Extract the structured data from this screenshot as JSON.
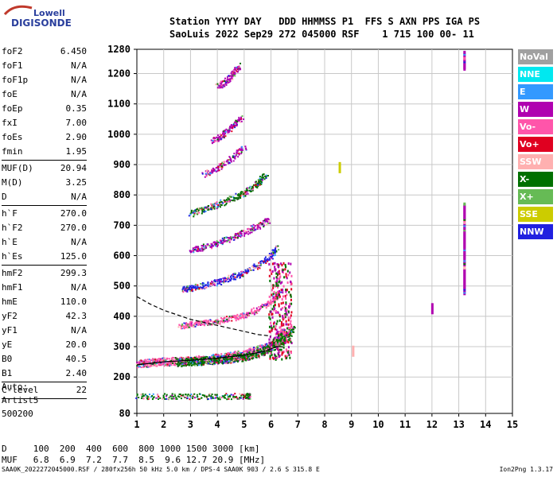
{
  "logo": {
    "line1": "Lowell",
    "line2": "DIGISONDE"
  },
  "header": {
    "line1": "Station YYYY DAY   DDD HHMMSS P1  FFS S AXN PPS IGA PS",
    "line2": "SaoLuis 2022 Sep29 272 045000 RSF    1 715 100 00- 11"
  },
  "params": {
    "g1": [
      {
        "k": "foF2",
        "v": "6.450"
      },
      {
        "k": "foF1",
        "v": "N/A"
      },
      {
        "k": "foF1p",
        "v": "N/A"
      },
      {
        "k": "foE",
        "v": "N/A"
      },
      {
        "k": "foEp",
        "v": "0.35"
      },
      {
        "k": "fxI",
        "v": "7.00"
      },
      {
        "k": "foEs",
        "v": "2.90"
      },
      {
        "k": "fmin",
        "v": "1.95"
      }
    ],
    "g2": [
      {
        "k": "MUF(D)",
        "v": "20.94"
      },
      {
        "k": "M(D)",
        "v": "3.25"
      },
      {
        "k": "D",
        "v": "N/A"
      }
    ],
    "g3": [
      {
        "k": "h`F",
        "v": "270.0"
      },
      {
        "k": "h`F2",
        "v": "270.0"
      },
      {
        "k": "h`E",
        "v": "N/A"
      },
      {
        "k": "h`Es",
        "v": "125.0"
      }
    ],
    "g4": [
      {
        "k": "hmF2",
        "v": "299.3"
      },
      {
        "k": "hmF1",
        "v": "N/A"
      },
      {
        "k": "hmE",
        "v": "110.0"
      },
      {
        "k": "yF2",
        "v": "42.3"
      },
      {
        "k": "yF1",
        "v": "N/A"
      },
      {
        "k": "yE",
        "v": "20.0"
      },
      {
        "k": "B0",
        "v": "40.5"
      },
      {
        "k": "B1",
        "v": "2.40"
      }
    ],
    "g5": [
      {
        "k": "C-level",
        "v": "22"
      }
    ]
  },
  "auto": {
    "l1": "Auto:",
    "l2": "Artist5",
    "l3": "500200"
  },
  "legend": [
    {
      "label": "NoVal",
      "color": "#a0a0a0"
    },
    {
      "label": "NNE",
      "color": "#00e8f0"
    },
    {
      "label": "E",
      "color": "#3399ff"
    },
    {
      "label": "W",
      "color": "#b000b0"
    },
    {
      "label": "Vo-",
      "color": "#ff55aa"
    },
    {
      "label": "Vo+",
      "color": "#e00020"
    },
    {
      "label": "SSW",
      "color": "#ffb0b0"
    },
    {
      "label": "X-",
      "color": "#007000"
    },
    {
      "label": "X+",
      "color": "#66bb55"
    },
    {
      "label": "SSE",
      "color": "#cccc00"
    },
    {
      "label": "NNW",
      "color": "#2020e0"
    }
  ],
  "muf": {
    "line1": "D     100  200  400  600  800 1000 1500 3000 [km]",
    "line2": "MUF   6.8  6.9  7.2  7.7  8.5  9.6 12.7 20.9 [MHz]"
  },
  "footer": {
    "left": "SAA0K_2022272045000.RSF / 280fx256h 50 kHz 5.0 km / DPS-4 SAA0K 903 / 2.6 S 315.8 E",
    "right": "Ion2Png 1.3.17"
  },
  "chart_data": {
    "type": "scatter",
    "xlim": [
      1,
      15
    ],
    "ylim": [
      80,
      1280
    ],
    "x_ticks": [
      1,
      2,
      3,
      4,
      5,
      6,
      7,
      8,
      9,
      10,
      11,
      12,
      13,
      14,
      15
    ],
    "y_ticks": [
      80,
      200,
      300,
      400,
      500,
      600,
      700,
      800,
      900,
      1000,
      1100,
      1200,
      1280
    ],
    "grid": true,
    "traces": [
      {
        "name": "o-trace F (1st hop)",
        "color": "#ff55aa",
        "x": [
          1.0,
          1.5,
          2.0,
          2.5,
          3.0,
          3.5,
          4.0,
          4.5,
          5.0,
          5.5,
          6.0,
          6.3,
          6.45
        ],
        "y": [
          245,
          250,
          252,
          254,
          256,
          260,
          265,
          270,
          278,
          290,
          305,
          330,
          360
        ]
      },
      {
        "name": "x-trace F (1st hop)",
        "color": "#007000",
        "x": [
          2.5,
          3.0,
          3.5,
          4.0,
          4.5,
          5.0,
          5.5,
          6.0,
          6.5,
          6.8
        ],
        "y": [
          250,
          252,
          255,
          258,
          262,
          268,
          280,
          300,
          330,
          360
        ]
      },
      {
        "name": "2nd hop",
        "color": "#ff55aa",
        "x": [
          2.6,
          3.0,
          3.5,
          4.0,
          4.5,
          5.0,
          5.5,
          6.0,
          6.3
        ],
        "y": [
          370,
          375,
          380,
          385,
          395,
          405,
          425,
          450,
          480
        ]
      },
      {
        "name": "3rd hop",
        "color": "#2020e0",
        "x": [
          2.7,
          3.0,
          3.5,
          4.0,
          4.5,
          5.0,
          5.5,
          6.0,
          6.2
        ],
        "y": [
          490,
          495,
          505,
          515,
          530,
          545,
          570,
          600,
          630
        ]
      },
      {
        "name": "4th hop",
        "color": "#b000b0",
        "x": [
          3.0,
          3.5,
          4.0,
          4.5,
          5.0,
          5.5,
          5.9
        ],
        "y": [
          620,
          630,
          645,
          660,
          680,
          700,
          720
        ]
      },
      {
        "name": "5th hop",
        "color": "#007000",
        "x": [
          3.0,
          3.5,
          4.0,
          4.5,
          5.0,
          5.5,
          5.8
        ],
        "y": [
          740,
          755,
          770,
          790,
          810,
          840,
          870
        ]
      },
      {
        "name": "6th hop",
        "color": "#b000b0",
        "x": [
          3.5,
          4.0,
          4.5,
          5.0
        ],
        "y": [
          870,
          890,
          920,
          960
        ]
      },
      {
        "name": "7th hop",
        "color": "#b000b0",
        "x": [
          3.8,
          4.2,
          4.6,
          4.9
        ],
        "y": [
          980,
          1000,
          1030,
          1060
        ]
      },
      {
        "name": "8th hop",
        "color": "#b000b0",
        "x": [
          4.0,
          4.3,
          4.6,
          4.8
        ],
        "y": [
          1160,
          1175,
          1200,
          1230
        ]
      },
      {
        "name": "Es",
        "color": "#007000",
        "x": [
          1.0,
          2.0,
          3.0,
          4.0,
          5.0,
          5.2
        ],
        "y": [
          138,
          138,
          138,
          138,
          139,
          139
        ]
      }
    ],
    "model_curves": [
      {
        "name": "profile",
        "style": "solid",
        "x": [
          1.0,
          2.0,
          3.0,
          4.0,
          5.0,
          5.8,
          6.2,
          6.45
        ],
        "y": [
          240,
          250,
          255,
          262,
          272,
          285,
          300,
          299
        ]
      },
      {
        "name": "dashed",
        "style": "dashed",
        "x": [
          1.0,
          1.5,
          2.0,
          2.5,
          3.0,
          3.5,
          4.0,
          4.5,
          5.0,
          5.5,
          6.0
        ],
        "y": [
          465,
          440,
          420,
          405,
          390,
          380,
          370,
          360,
          350,
          340,
          335
        ]
      }
    ],
    "isolated": [
      {
        "x": 8.55,
        "y": 890,
        "color": "#cccc00"
      },
      {
        "x": 9.05,
        "y": 285,
        "color": "#ffb0b0"
      },
      {
        "x": 12.0,
        "y": 425,
        "color": "#b000b0"
      }
    ],
    "vertical_band": {
      "x": 13.2,
      "segments": [
        [
          480,
          780
        ],
        [
          1220,
          1280
        ]
      ],
      "color": "#b000b0"
    }
  }
}
